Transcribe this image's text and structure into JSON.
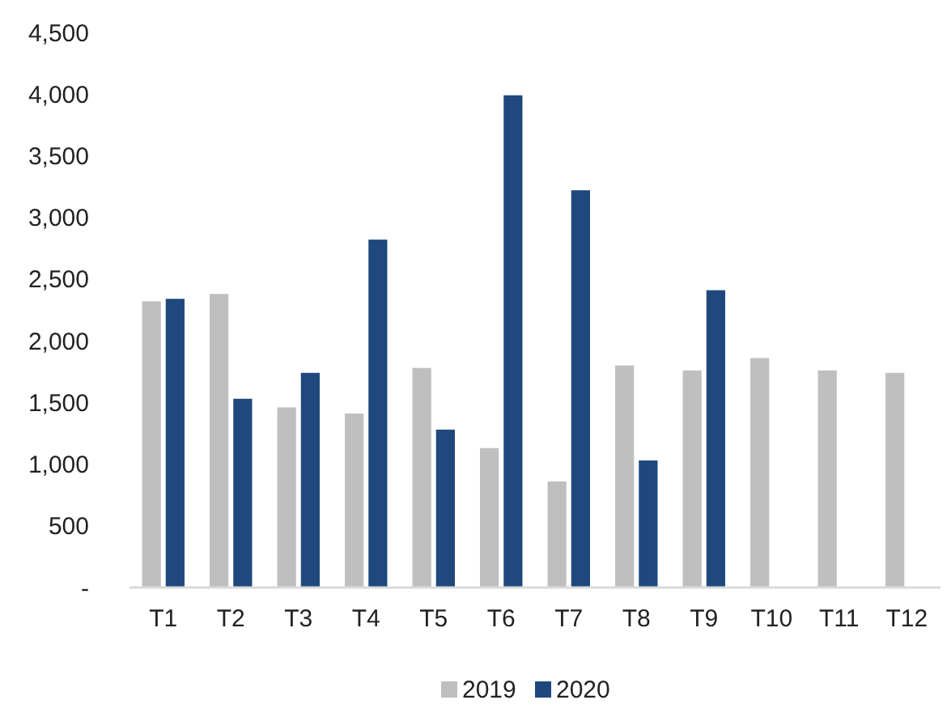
{
  "chart_data": {
    "type": "bar",
    "categories": [
      "T1",
      "T2",
      "T3",
      "T4",
      "T5",
      "T6",
      "T7",
      "T8",
      "T9",
      "T10",
      "T11",
      "T12"
    ],
    "series": [
      {
        "name": "2019",
        "color": "#bfbfbf",
        "values": [
          2320,
          2380,
          1460,
          1410,
          1780,
          1130,
          860,
          1800,
          1760,
          1860,
          1760,
          1740
        ]
      },
      {
        "name": "2020",
        "color": "#1f497d",
        "values": [
          2340,
          1530,
          1740,
          2820,
          1280,
          3990,
          3220,
          1030,
          2410,
          null,
          null,
          null
        ]
      }
    ],
    "ylim": [
      0,
      4500
    ],
    "yticks": [
      {
        "value": 0,
        "label": "-"
      },
      {
        "value": 500,
        "label": "500"
      },
      {
        "value": 1000,
        "label": "1,000"
      },
      {
        "value": 1500,
        "label": "1,500"
      },
      {
        "value": 2000,
        "label": "2,000"
      },
      {
        "value": 2500,
        "label": "2,500"
      },
      {
        "value": 3000,
        "label": "3,000"
      },
      {
        "value": 3500,
        "label": "3,500"
      },
      {
        "value": 4000,
        "label": "4,000"
      },
      {
        "value": 4500,
        "label": "4,500"
      }
    ],
    "grid": false,
    "legend": "bottom"
  }
}
